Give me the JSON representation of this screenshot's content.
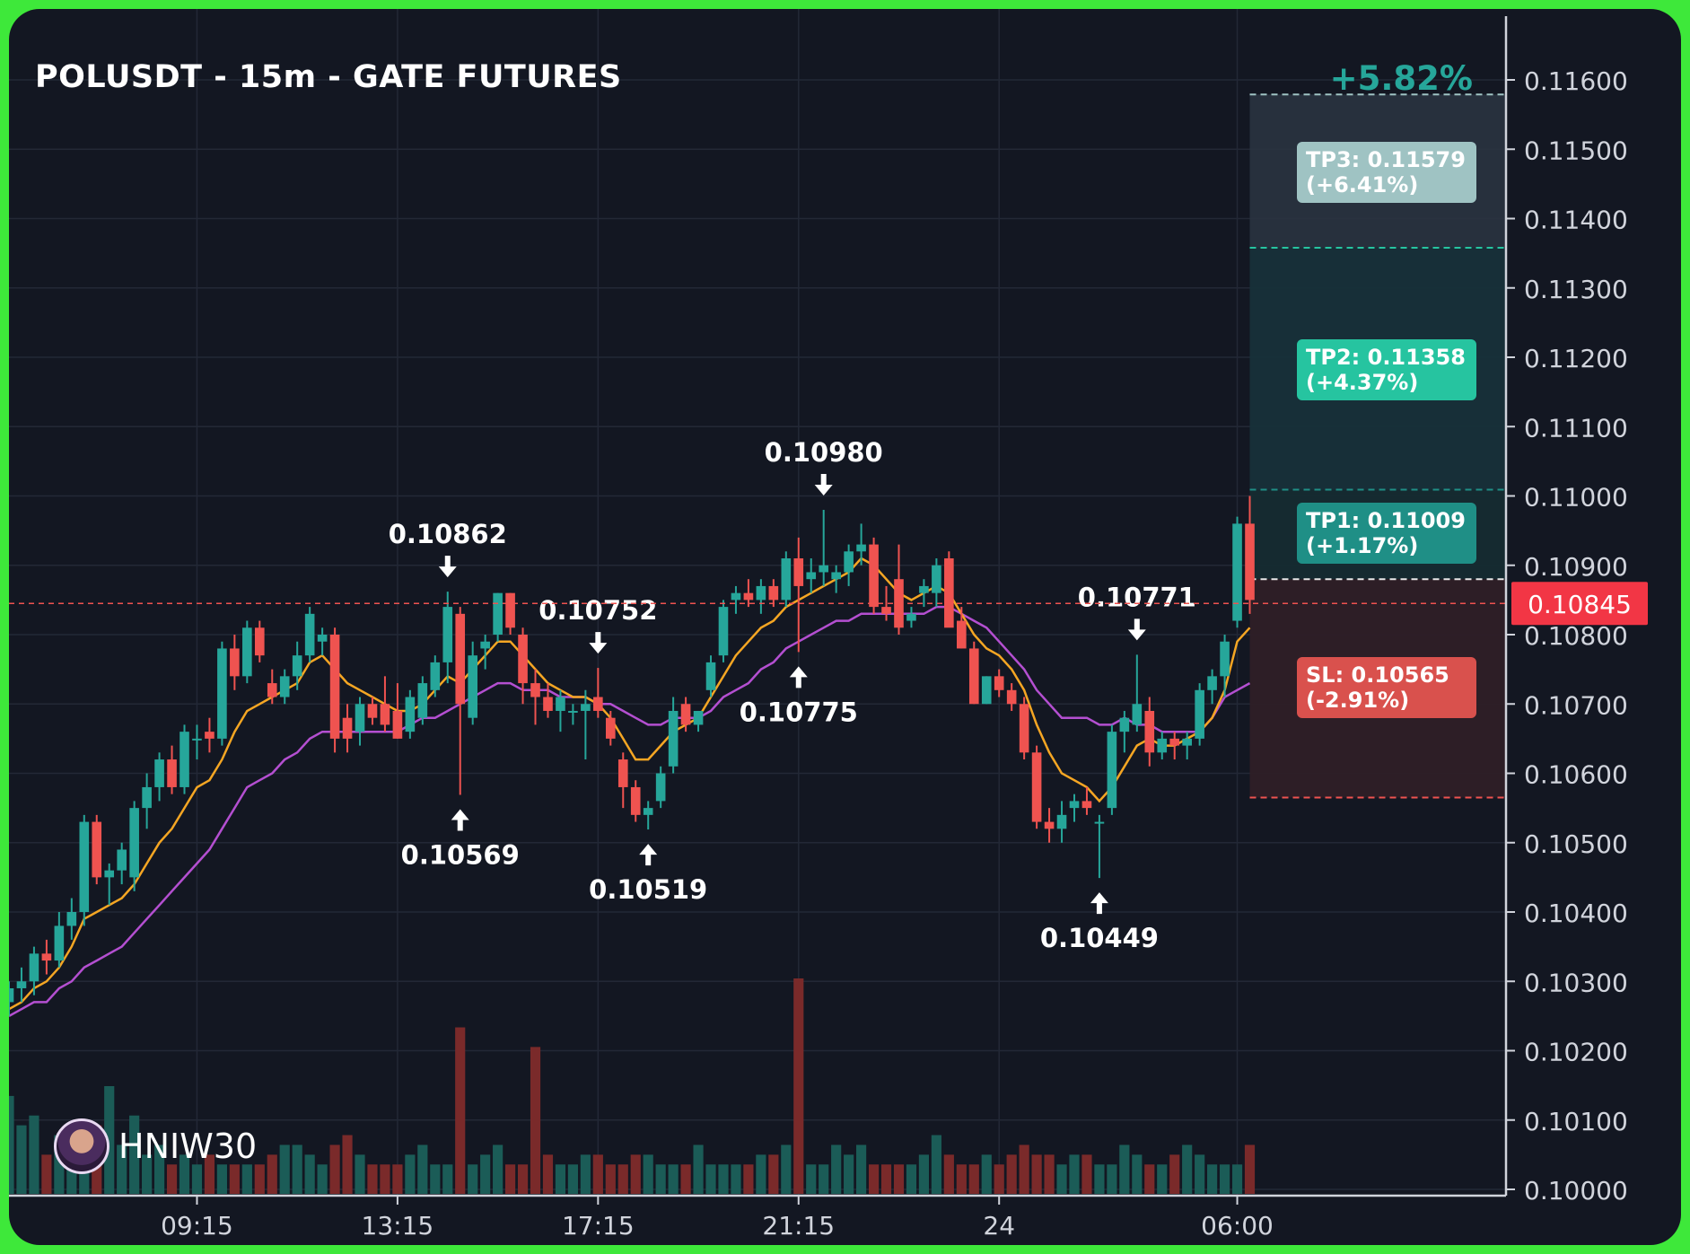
{
  "header": {
    "title": "POLUSDT - 15m - GATE FUTURES",
    "change_pct": "+5.82%"
  },
  "brand": {
    "name": "HNIW30",
    "icon": "avatar-icon"
  },
  "colors": {
    "background": "#131722",
    "frame": "#3ee83a",
    "bull": "#26a69a",
    "bear": "#ef5350",
    "ema_fast": "#f5a623",
    "ema_slow": "#b44fd1",
    "tp3": "#9fc3c3",
    "tp2": "#26c4a0",
    "tp1": "#1f8f86",
    "sl": "#d9514d"
  },
  "chart_data": {
    "type": "candlestick",
    "title": "POLUSDT - 15m - GATE FUTURES",
    "ylim": [
      0.1,
      0.1165
    ],
    "y_ticks": [
      "0.11600",
      "0.11500",
      "0.11400",
      "0.11300",
      "0.11200",
      "0.11100",
      "0.11000",
      "0.10900",
      "0.10800",
      "0.10700",
      "0.10600",
      "0.10500",
      "0.10400",
      "0.10300",
      "0.10200",
      "0.10100",
      "0.10000"
    ],
    "x_ticks": [
      "09:15",
      "13:15",
      "17:15",
      "21:15",
      "24",
      "06:00"
    ],
    "x_tick_index": [
      15,
      31,
      47,
      63,
      79,
      98
    ],
    "current_price": "0.10845",
    "candles": [
      [
        0.1027,
        0.103,
        0.1025,
        0.1029
      ],
      [
        0.1029,
        0.1032,
        0.1027,
        0.103
      ],
      [
        0.103,
        0.1035,
        0.1028,
        0.1034
      ],
      [
        0.1034,
        0.1036,
        0.1031,
        0.1033
      ],
      [
        0.1033,
        0.104,
        0.1032,
        0.1038
      ],
      [
        0.1038,
        0.1042,
        0.1036,
        0.104
      ],
      [
        0.104,
        0.1054,
        0.1038,
        0.1053
      ],
      [
        0.1053,
        0.1054,
        0.1044,
        0.1045
      ],
      [
        0.1045,
        0.1047,
        0.1041,
        0.1046
      ],
      [
        0.1046,
        0.105,
        0.1044,
        0.1049
      ],
      [
        0.1045,
        0.1056,
        0.1043,
        0.1055
      ],
      [
        0.1055,
        0.106,
        0.1052,
        0.1058
      ],
      [
        0.1058,
        0.1063,
        0.1056,
        0.1062
      ],
      [
        0.1062,
        0.1064,
        0.1057,
        0.1058
      ],
      [
        0.1058,
        0.1067,
        0.1057,
        0.1066
      ],
      [
        0.1065,
        0.1067,
        0.1062,
        0.1065
      ],
      [
        0.1066,
        0.1068,
        0.1063,
        0.1065
      ],
      [
        0.1065,
        0.1079,
        0.1064,
        0.1078
      ],
      [
        0.1078,
        0.108,
        0.1072,
        0.1074
      ],
      [
        0.1074,
        0.1082,
        0.1073,
        0.1081
      ],
      [
        0.1081,
        0.1082,
        0.1076,
        0.1077
      ],
      [
        0.1073,
        0.1075,
        0.107,
        0.1071
      ],
      [
        0.1071,
        0.1075,
        0.107,
        0.1074
      ],
      [
        0.1074,
        0.1079,
        0.1072,
        0.1077
      ],
      [
        0.1077,
        0.1084,
        0.1076,
        0.1083
      ],
      [
        0.1079,
        0.1081,
        0.1077,
        0.108
      ],
      [
        0.108,
        0.1081,
        0.1063,
        0.1065
      ],
      [
        0.1068,
        0.107,
        0.1063,
        0.1065
      ],
      [
        0.1066,
        0.1071,
        0.1064,
        0.107
      ],
      [
        0.107,
        0.1071,
        0.1067,
        0.1068
      ],
      [
        0.107,
        0.1074,
        0.1066,
        0.1067
      ],
      [
        0.1069,
        0.1073,
        0.1065,
        0.1065
      ],
      [
        0.1066,
        0.1072,
        0.1065,
        0.1071
      ],
      [
        0.1068,
        0.1074,
        0.1067,
        0.1073
      ],
      [
        0.1072,
        0.1077,
        0.1071,
        0.1076
      ],
      [
        0.1076,
        0.10862,
        0.1073,
        0.1084
      ],
      [
        0.1083,
        0.1084,
        0.10569,
        0.107
      ],
      [
        0.1068,
        0.1079,
        0.1067,
        0.1077
      ],
      [
        0.1078,
        0.108,
        0.1075,
        0.1079
      ],
      [
        0.108,
        0.1086,
        0.1079,
        0.1086
      ],
      [
        0.1086,
        0.1086,
        0.108,
        0.1081
      ],
      [
        0.108,
        0.1081,
        0.107,
        0.1073
      ],
      [
        0.1073,
        0.1075,
        0.1067,
        0.1071
      ],
      [
        0.1071,
        0.1073,
        0.1068,
        0.1069
      ],
      [
        0.1069,
        0.1072,
        0.1066,
        0.1071
      ],
      [
        0.1069,
        0.107,
        0.1067,
        0.1069
      ],
      [
        0.1069,
        0.1072,
        0.1062,
        0.107
      ],
      [
        0.1071,
        0.10752,
        0.1068,
        0.1069
      ],
      [
        0.1068,
        0.1069,
        0.1064,
        0.1065
      ],
      [
        0.1062,
        0.1063,
        0.1055,
        0.1058
      ],
      [
        0.1058,
        0.1059,
        0.1053,
        0.1054
      ],
      [
        0.1054,
        0.1056,
        0.10519,
        0.1055
      ],
      [
        0.1056,
        0.1061,
        0.1055,
        0.106
      ],
      [
        0.1061,
        0.1071,
        0.106,
        0.1069
      ],
      [
        0.107,
        0.1071,
        0.1066,
        0.1067
      ],
      [
        0.1067,
        0.1069,
        0.1066,
        0.1069
      ],
      [
        0.1072,
        0.1077,
        0.1071,
        0.1076
      ],
      [
        0.1077,
        0.1085,
        0.1076,
        0.1084
      ],
      [
        0.1085,
        0.1087,
        0.1083,
        0.1086
      ],
      [
        0.1086,
        0.1088,
        0.1084,
        0.1085
      ],
      [
        0.1085,
        0.1088,
        0.1083,
        0.1087
      ],
      [
        0.1087,
        0.1088,
        0.1084,
        0.1085
      ],
      [
        0.1085,
        0.1092,
        0.1084,
        0.1091
      ],
      [
        0.1091,
        0.1094,
        0.10775,
        0.1087
      ],
      [
        0.1088,
        0.1091,
        0.1086,
        0.1089
      ],
      [
        0.1089,
        0.1098,
        0.1087,
        0.109
      ],
      [
        0.1088,
        0.109,
        0.1086,
        0.1089
      ],
      [
        0.1089,
        0.1093,
        0.1087,
        0.1092
      ],
      [
        0.1092,
        0.1096,
        0.109,
        0.1093
      ],
      [
        0.1093,
        0.1094,
        0.1083,
        0.1084
      ],
      [
        0.1084,
        0.1087,
        0.1082,
        0.1083
      ],
      [
        0.1088,
        0.1093,
        0.108,
        0.1081
      ],
      [
        0.1082,
        0.1084,
        0.1081,
        0.1083
      ],
      [
        0.1086,
        0.1088,
        0.1084,
        0.1087
      ],
      [
        0.1086,
        0.1091,
        0.1084,
        0.109
      ],
      [
        0.1091,
        0.1092,
        0.1082,
        0.1081
      ],
      [
        0.1082,
        0.1084,
        0.1078,
        0.1078
      ],
      [
        0.1078,
        0.1079,
        0.107,
        0.107
      ],
      [
        0.107,
        0.1074,
        0.107,
        0.1074
      ],
      [
        0.1074,
        0.1075,
        0.1071,
        0.1072
      ],
      [
        0.1072,
        0.1073,
        0.1069,
        0.107
      ],
      [
        0.107,
        0.1071,
        0.1062,
        0.1063
      ],
      [
        0.1063,
        0.1064,
        0.1052,
        0.1053
      ],
      [
        0.1053,
        0.1055,
        0.105,
        0.1052
      ],
      [
        0.1052,
        0.1056,
        0.105,
        0.1054
      ],
      [
        0.1055,
        0.1057,
        0.1053,
        0.1056
      ],
      [
        0.1056,
        0.1058,
        0.1054,
        0.1055
      ],
      [
        0.1053,
        0.1054,
        0.10449,
        0.1053
      ],
      [
        0.1055,
        0.1067,
        0.1054,
        0.1066
      ],
      [
        0.1066,
        0.1069,
        0.1063,
        0.1068
      ],
      [
        0.1067,
        0.10771,
        0.1066,
        0.107
      ],
      [
        0.1069,
        0.1071,
        0.1061,
        0.1063
      ],
      [
        0.1063,
        0.1066,
        0.1062,
        0.1065
      ],
      [
        0.1065,
        0.1066,
        0.1062,
        0.1064
      ],
      [
        0.1064,
        0.1066,
        0.1062,
        0.1065
      ],
      [
        0.1065,
        0.1073,
        0.1064,
        0.1072
      ],
      [
        0.1072,
        0.1075,
        0.107,
        0.1074
      ],
      [
        0.1074,
        0.108,
        0.1071,
        0.1079
      ],
      [
        0.1082,
        0.1097,
        0.1081,
        0.1096
      ],
      [
        0.1096,
        0.11,
        0.1083,
        0.1085
      ]
    ],
    "volume": [
      10,
      7,
      8,
      4,
      6,
      3,
      5,
      7,
      11,
      5,
      8,
      4,
      5,
      3,
      4,
      3,
      4,
      3,
      3,
      3,
      3,
      4,
      5,
      5,
      4,
      3,
      5,
      6,
      4,
      3,
      3,
      3,
      4,
      5,
      3,
      3,
      17,
      3,
      4,
      5,
      3,
      3,
      15,
      4,
      3,
      3,
      4,
      4,
      3,
      3,
      4,
      4,
      3,
      3,
      3,
      5,
      3,
      3,
      3,
      3,
      4,
      4,
      5,
      22,
      3,
      3,
      5,
      4,
      5,
      3,
      3,
      3,
      3,
      4,
      6,
      4,
      3,
      3,
      4,
      3,
      4,
      5,
      4,
      4,
      3,
      4,
      4,
      3,
      3,
      5,
      4,
      3,
      3,
      4,
      5,
      4,
      3,
      3,
      3,
      5
    ],
    "ema_fast": [
      0.1026,
      0.1027,
      0.1029,
      0.103,
      0.1032,
      0.1035,
      0.1039,
      0.104,
      0.1041,
      0.1042,
      0.1044,
      0.1047,
      0.105,
      0.1052,
      0.1055,
      0.1058,
      0.1059,
      0.1062,
      0.1066,
      0.1069,
      0.107,
      0.1071,
      0.1072,
      0.1073,
      0.1076,
      0.1077,
      0.1075,
      0.1073,
      0.1072,
      0.1071,
      0.107,
      0.1069,
      0.1069,
      0.107,
      0.1072,
      0.1074,
      0.1073,
      0.1075,
      0.1077,
      0.1079,
      0.1079,
      0.1077,
      0.1075,
      0.1073,
      0.1072,
      0.1071,
      0.1071,
      0.107,
      0.1068,
      0.1065,
      0.1062,
      0.1062,
      0.1064,
      0.1066,
      0.1067,
      0.1068,
      0.1071,
      0.1074,
      0.1077,
      0.1079,
      0.1081,
      0.1082,
      0.1084,
      0.1085,
      0.1086,
      0.1087,
      0.1088,
      0.1089,
      0.1091,
      0.109,
      0.1088,
      0.1086,
      0.1085,
      0.1086,
      0.1087,
      0.1086,
      0.1083,
      0.108,
      0.1078,
      0.1077,
      0.1075,
      0.1072,
      0.1067,
      0.1063,
      0.106,
      0.1059,
      0.1058,
      0.1056,
      0.1058,
      0.1061,
      0.1064,
      0.1065,
      0.1064,
      0.1064,
      0.1065,
      0.1066,
      0.1068,
      0.1072,
      0.1079,
      0.1081
    ],
    "ema_slow": [
      0.1025,
      0.1026,
      0.1027,
      0.1027,
      0.1029,
      0.103,
      0.1032,
      0.1033,
      0.1034,
      0.1035,
      0.1037,
      0.1039,
      0.1041,
      0.1043,
      0.1045,
      0.1047,
      0.1049,
      0.1052,
      0.1055,
      0.1058,
      0.1059,
      0.106,
      0.1062,
      0.1063,
      0.1065,
      0.1066,
      0.1066,
      0.1066,
      0.1066,
      0.1066,
      0.1066,
      0.1066,
      0.1067,
      0.1068,
      0.1068,
      0.1069,
      0.107,
      0.1071,
      0.1072,
      0.1073,
      0.1073,
      0.1072,
      0.1072,
      0.1072,
      0.1071,
      0.1071,
      0.1071,
      0.107,
      0.107,
      0.1069,
      0.1068,
      0.1067,
      0.1067,
      0.1068,
      0.1068,
      0.1068,
      0.1069,
      0.1071,
      0.1072,
      0.1073,
      0.1075,
      0.1076,
      0.1078,
      0.1079,
      0.108,
      0.1081,
      0.1082,
      0.1082,
      0.1083,
      0.1083,
      0.1083,
      0.1083,
      0.1083,
      0.1083,
      0.1084,
      0.1084,
      0.1083,
      0.1082,
      0.1081,
      0.1079,
      0.1077,
      0.1075,
      0.1072,
      0.107,
      0.1068,
      0.1068,
      0.1068,
      0.1067,
      0.1067,
      0.1068,
      0.1067,
      0.1067,
      0.1066,
      0.1066,
      0.1066,
      0.1066,
      0.1068,
      0.1071,
      0.1072,
      0.1073
    ],
    "annotations": [
      {
        "label": "0.10862",
        "index": 35,
        "price": 0.10862,
        "kind": "high"
      },
      {
        "label": "0.10569",
        "index": 36,
        "price": 0.10569,
        "kind": "low"
      },
      {
        "label": "0.10752",
        "index": 47,
        "price": 0.10752,
        "kind": "high"
      },
      {
        "label": "0.10519",
        "index": 51,
        "price": 0.10519,
        "kind": "low"
      },
      {
        "label": "0.10980",
        "index": 65,
        "price": 0.1098,
        "kind": "high"
      },
      {
        "label": "0.10775",
        "index": 63,
        "price": 0.10775,
        "kind": "low"
      },
      {
        "label": "0.10771",
        "index": 90,
        "price": 0.10771,
        "kind": "high"
      },
      {
        "label": "0.10449",
        "index": 87,
        "price": 0.10449,
        "kind": "low"
      }
    ],
    "levels": {
      "tp3": {
        "price": 0.11579,
        "label": "TP3: 0.11579",
        "pct": "(+6.41%)"
      },
      "tp2": {
        "price": 0.11358,
        "label": "TP2: 0.11358",
        "pct": "(+4.37%)"
      },
      "tp1": {
        "price": 0.11009,
        "label": "TP1: 0.11009",
        "pct": "(+1.17%)"
      },
      "entry": {
        "price": 0.1088
      },
      "sl": {
        "price": 0.10565,
        "label": "SL: 0.10565",
        "pct": "(-2.91%)"
      }
    }
  }
}
